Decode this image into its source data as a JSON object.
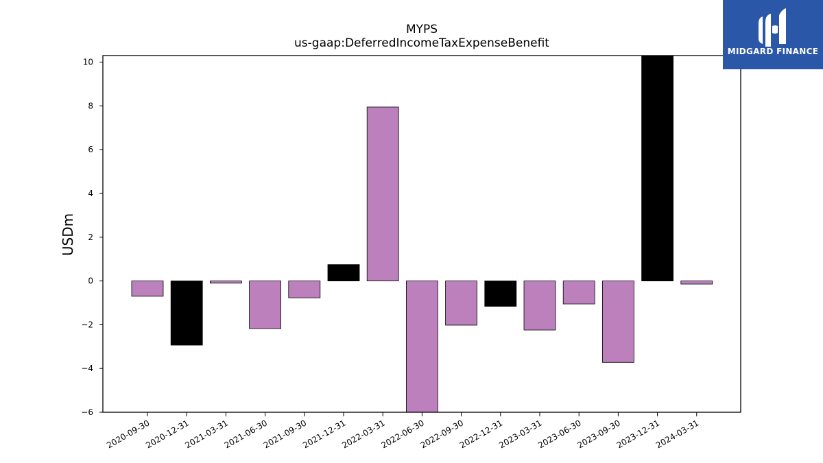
{
  "chart_data": {
    "type": "bar",
    "title": "MYPS",
    "subtitle": "us-gaap:DeferredIncomeTaxExpenseBenefit",
    "xlabel": "",
    "ylabel": "USDm",
    "ylim": [
      -6,
      10.3
    ],
    "yticks": [
      -6,
      -4,
      -2,
      0,
      2,
      4,
      6,
      8,
      10
    ],
    "ytick_labels": [
      "−6",
      "−4",
      "−2",
      "0",
      "2",
      "4",
      "6",
      "8",
      "10"
    ],
    "grid": false,
    "categories": [
      "2020-09-30",
      "2020-12-31",
      "2021-03-31",
      "2021-06-30",
      "2021-09-30",
      "2021-12-31",
      "2022-03-31",
      "2022-06-30",
      "2022-09-30",
      "2022-12-31",
      "2023-03-31",
      "2023-06-30",
      "2023-09-30",
      "2023-12-31",
      "2024-03-31"
    ],
    "values": [
      -0.7,
      -2.93,
      -0.1,
      -2.18,
      -0.77,
      0.75,
      7.95,
      -6.2,
      -2.02,
      -1.16,
      -2.24,
      -1.05,
      -3.72,
      10.5,
      -0.14
    ],
    "colors": [
      "#bc80bd",
      "#000000",
      "#bc80bd",
      "#bc80bd",
      "#bc80bd",
      "#000000",
      "#bc80bd",
      "#bc80bd",
      "#bc80bd",
      "#000000",
      "#bc80bd",
      "#bc80bd",
      "#bc80bd",
      "#000000",
      "#bc80bd"
    ]
  },
  "logo": {
    "text": "MIDGARD FINANCE",
    "background": "#2a57a8"
  }
}
